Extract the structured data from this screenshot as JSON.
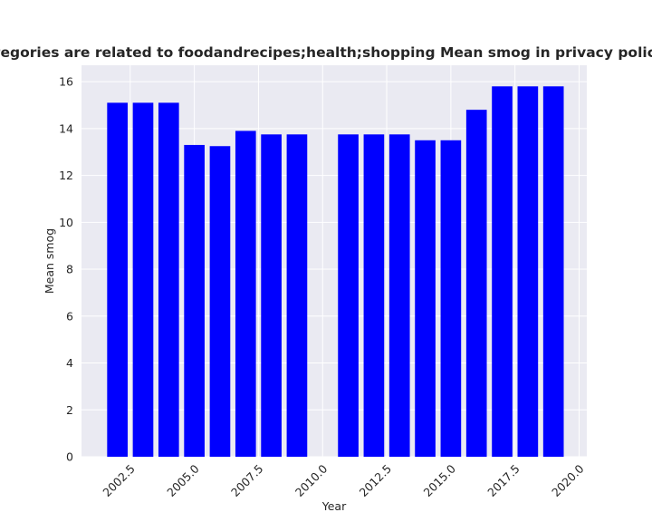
{
  "chart_data": {
    "type": "bar",
    "title": "When categories are related to foodandrecipes;health;shopping Mean smog in privacy policies by year",
    "xlabel": "Year",
    "ylabel": "Mean smog",
    "x": [
      2002,
      2003,
      2004,
      2005,
      2006,
      2007,
      2008,
      2009,
      2011,
      2012,
      2013,
      2014,
      2015,
      2016,
      2017,
      2018,
      2019
    ],
    "values": [
      15.1,
      15.1,
      15.1,
      13.3,
      13.25,
      13.9,
      13.75,
      13.75,
      13.75,
      13.75,
      13.75,
      13.5,
      13.5,
      14.8,
      15.8,
      15.8,
      15.8
    ],
    "xlim": [
      2000.6,
      2020.3
    ],
    "ylim": [
      0,
      16.7
    ],
    "xticks": [
      "2002.5",
      "2005.0",
      "2007.5",
      "2010.0",
      "2012.5",
      "2015.0",
      "2017.5",
      "2020.0"
    ],
    "yticks": [
      "0",
      "2",
      "4",
      "6",
      "8",
      "10",
      "12",
      "14",
      "16"
    ],
    "bar_color": "#0000ff",
    "background_color": "#eaeaf2",
    "grid": true
  }
}
